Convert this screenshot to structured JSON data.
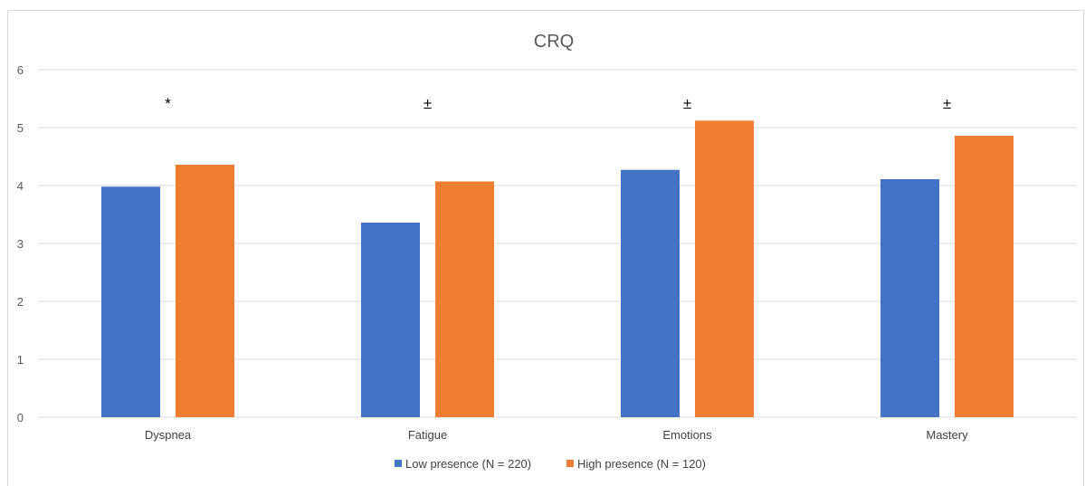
{
  "chart_data": {
    "type": "bar",
    "title": "CRQ",
    "categories": [
      "Dyspnea",
      "Fatigue",
      "Emotions",
      "Mastery"
    ],
    "series": [
      {
        "name": "Low presence (N = 220)",
        "color": "#4472c4",
        "values": [
          3.98,
          3.36,
          4.27,
          4.11
        ]
      },
      {
        "name": "High presence (N = 120)",
        "color": "#ed7d31",
        "values": [
          4.36,
          4.07,
          5.12,
          4.86
        ]
      }
    ],
    "annotations": [
      "*",
      "±",
      "±",
      "±"
    ],
    "ylim": [
      0,
      6
    ],
    "yticks": [
      "0",
      "1",
      "2",
      "3",
      "4",
      "5",
      "6"
    ],
    "grid": true,
    "legend_position": "bottom"
  }
}
